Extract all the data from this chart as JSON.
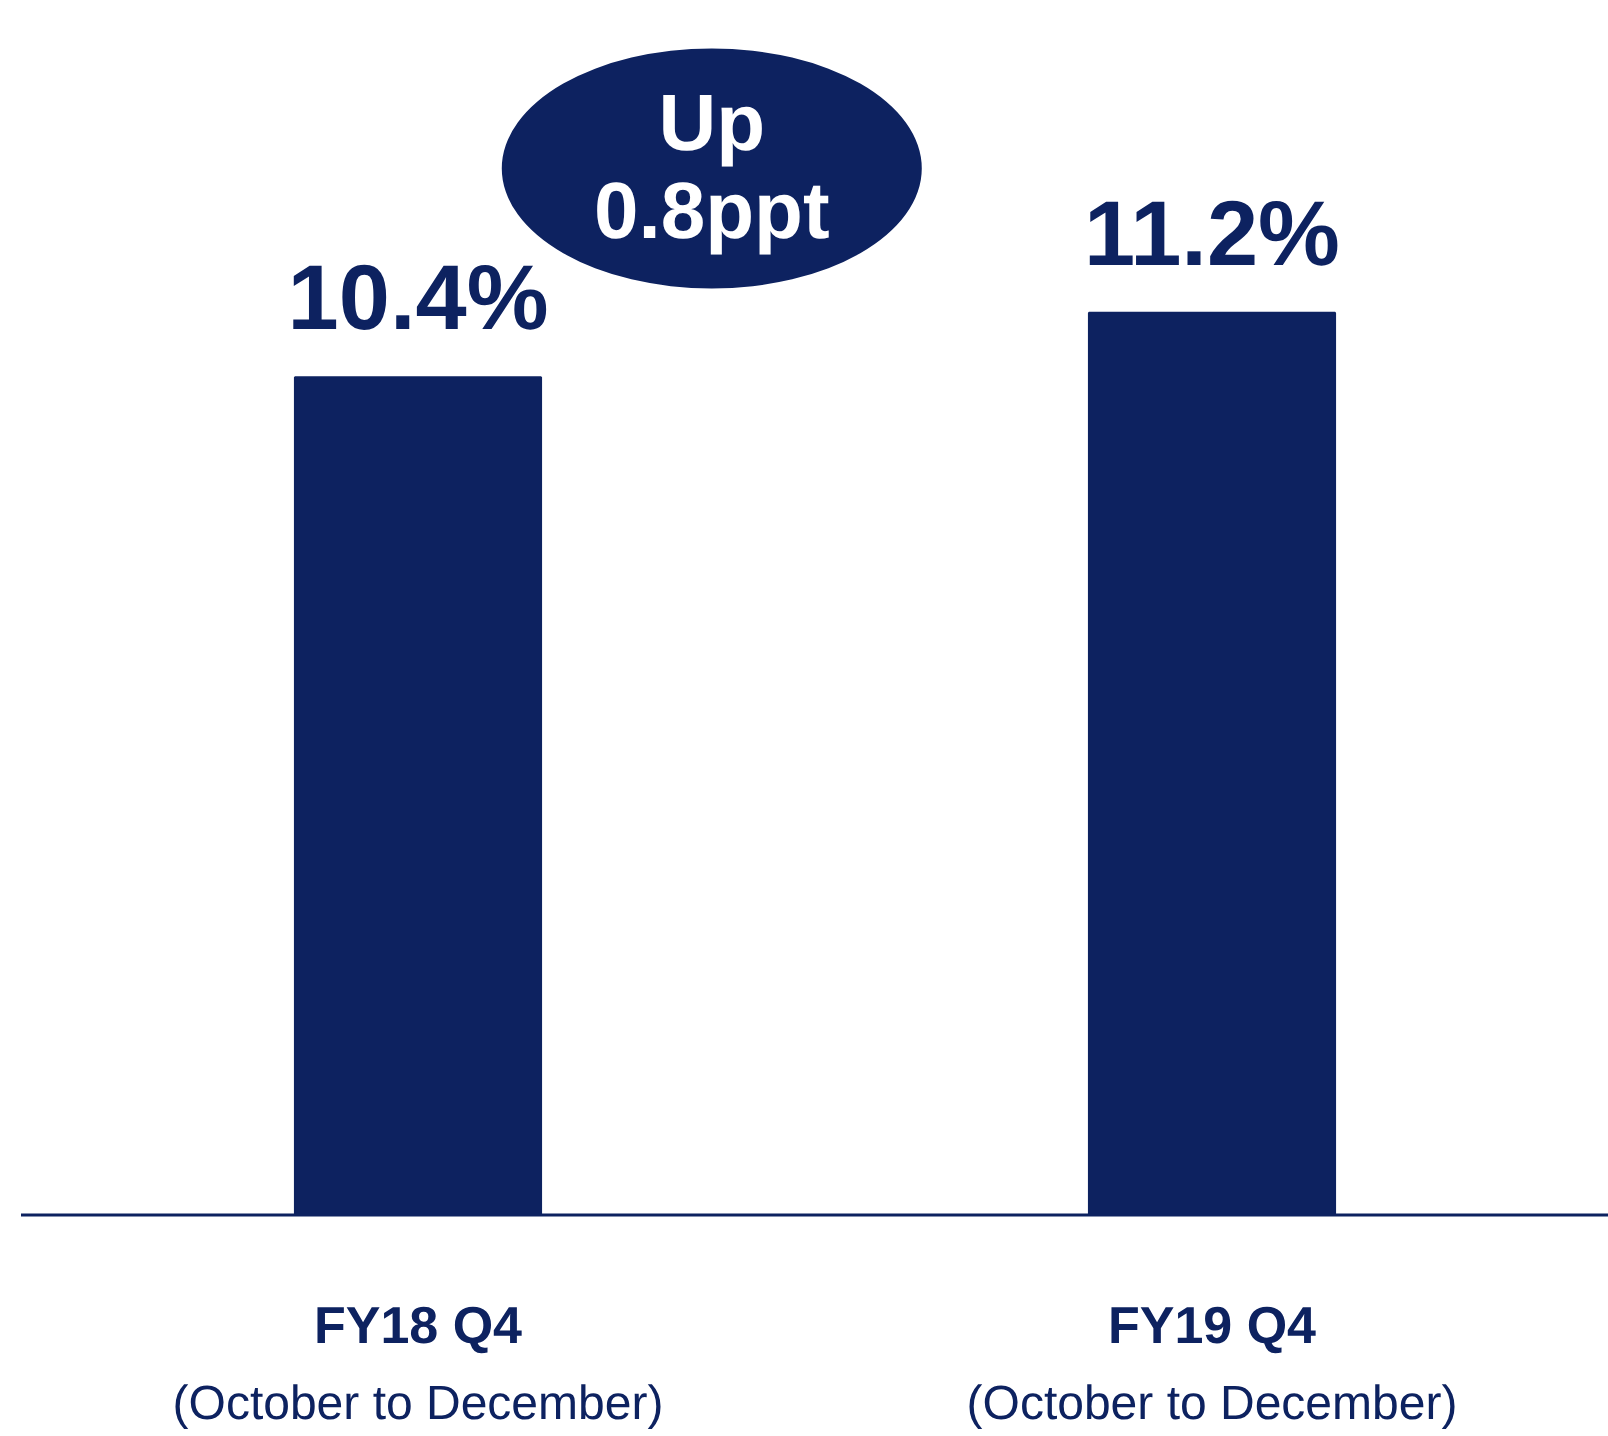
{
  "chart_data": {
    "type": "bar",
    "categories": [
      "FY18 Q4\n(October to December)",
      "FY19 Q4\n(October to December)"
    ],
    "values": [
      10.4,
      11.2
    ],
    "color": "#0d2260",
    "value_labels": [
      "10.4%",
      "11.2%"
    ],
    "annotations": [
      "Up\n0.8ppt"
    ]
  }
}
